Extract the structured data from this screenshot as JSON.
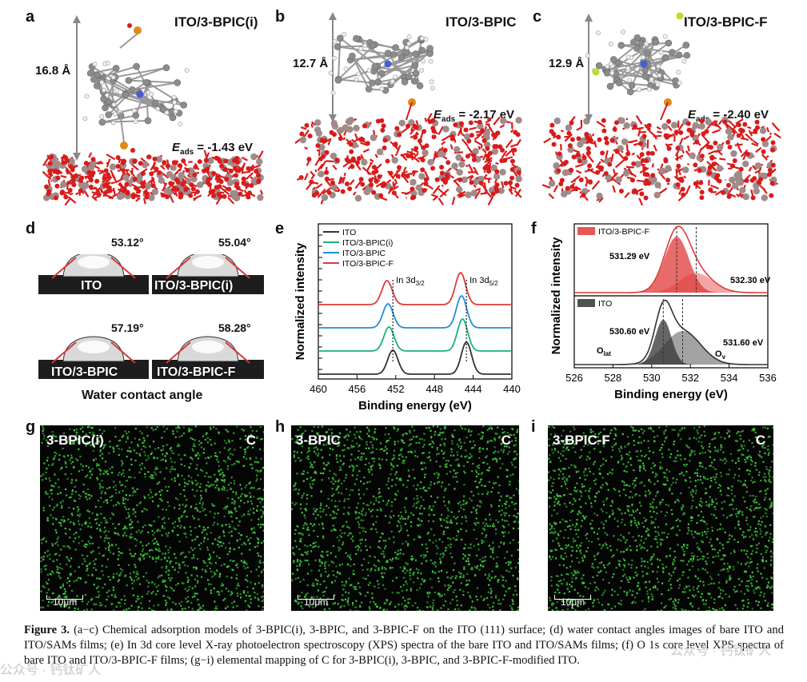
{
  "panels": {
    "a": {
      "letter": "a",
      "title": "ITO/3-BPIC(i)",
      "distance": "16.8 Å",
      "eads_label": "E",
      "eads_sub": "ads",
      "eads_value": " = -1.43 eV"
    },
    "b": {
      "letter": "b",
      "title": "ITO/3-BPIC",
      "distance": "12.7 Å",
      "eads_label": "E",
      "eads_sub": "ads",
      "eads_value": " = -2.17 eV"
    },
    "c": {
      "letter": "c",
      "title": "ITO/3-BPIC-F",
      "distance": "12.9 Å",
      "eads_label": "E",
      "eads_sub": "ads",
      "eads_value": " = -2.40 eV"
    },
    "d": {
      "letter": "d",
      "angles": [
        "53.12°",
        "55.04°",
        "57.19°",
        "58.28°"
      ],
      "labels": [
        "ITO",
        "ITO/3-BPIC(i)",
        "ITO/3-BPIC",
        "ITO/3-BPIC-F"
      ],
      "caption": "Water contact angle"
    },
    "e": {
      "letter": "e"
    },
    "f": {
      "letter": "f"
    },
    "g": {
      "letter": "g",
      "label": "3-BPIC(i)",
      "element": "C",
      "scale": "10μm"
    },
    "h": {
      "letter": "h",
      "label": "3-BPIC",
      "element": "C",
      "scale": "10μm"
    },
    "i": {
      "letter": "i",
      "label": "3-BPIC-F",
      "element": "C",
      "scale": "10μm"
    }
  },
  "chart_data": [
    {
      "type": "line",
      "panel": "e",
      "xlabel": "Binding energy (eV)",
      "ylabel": "Normalized intensity",
      "xlim": [
        460,
        440
      ],
      "xticks": [
        460,
        456,
        452,
        448,
        444,
        440
      ],
      "series": [
        {
          "name": "ITO",
          "color": "#333333",
          "offset": 0,
          "peaks": [
            {
              "x": 452.3,
              "h": 30
            },
            {
              "x": 444.7,
              "h": 40
            }
          ]
        },
        {
          "name": "ITO/3-BPIC(i)",
          "color": "#19b37a",
          "offset": 1,
          "peaks": [
            {
              "x": 452.7,
              "h": 30
            },
            {
              "x": 445.1,
              "h": 40
            }
          ]
        },
        {
          "name": "ITO/3-BPIC",
          "color": "#1e8fd8",
          "offset": 2,
          "peaks": [
            {
              "x": 452.8,
              "h": 30
            },
            {
              "x": 445.2,
              "h": 40
            }
          ]
        },
        {
          "name": "ITO/3-BPIC-F",
          "color": "#e03a3a",
          "offset": 3,
          "peaks": [
            {
              "x": 452.9,
              "h": 30
            },
            {
              "x": 445.3,
              "h": 40
            }
          ]
        }
      ],
      "annotations": [
        {
          "text": "In 3d",
          "sub": "3/2",
          "x": 452.3
        },
        {
          "text": "In 3d",
          "sub": "5/2",
          "x": 444.7
        }
      ]
    },
    {
      "type": "line",
      "panel": "f",
      "xlabel": "Binding energy (eV)",
      "ylabel": "Normalized intensity",
      "xlim": [
        526,
        536
      ],
      "xticks": [
        526,
        528,
        530,
        532,
        534,
        536
      ],
      "series": [
        {
          "name": "ITO/3-BPIC-F",
          "color": "#e03a3a",
          "components": [
            {
              "x": 531.29,
              "h": 1.0,
              "w": 0.9
            },
            {
              "x": 532.3,
              "h": 0.35,
              "w": 1.2
            }
          ]
        },
        {
          "name": "ITO",
          "color": "#333333",
          "components": [
            {
              "x": 530.6,
              "h": 0.8,
              "w": 0.6
            },
            {
              "x": 531.6,
              "h": 0.6,
              "w": 1.3
            }
          ]
        }
      ],
      "annotations": [
        {
          "text": "531.29 eV"
        },
        {
          "text": "532.30 eV"
        },
        {
          "text": "530.60 eV"
        },
        {
          "text": "531.60 eV"
        },
        {
          "text": "O",
          "sub": "lat"
        },
        {
          "text": "O",
          "sub": "v"
        }
      ]
    }
  ],
  "caption": {
    "bold": "Figure 3.",
    "text": " (a−c) Chemical adsorption models of 3-BPIC(i), 3-BPIC, and 3-BPIC-F on the ITO (111) surface; (d) water contact angles images of bare ITO and ITO/SAMs films; (e) In 3d core level X-ray photoelectron spectroscopy (XPS) spectra of the bare ITO and ITO/SAMs films; (f) O 1s core level XPS spectra of bare ITO and ITO/3-BPIC-F films; (g−i) elemental mapping of C for 3-BPIC(i), 3-BPIC, and 3-BPIC-F-modified ITO."
  },
  "watermark": {
    "left": "公众号 · 钙钛矿人",
    "right": "公众号 · 钙钛矿人"
  },
  "colors": {
    "oxygen": "#d81b1b",
    "metal": "#a08a8a",
    "carbon": "#8c8c8c",
    "nitrogen": "#4b5bd6",
    "phosphorus": "#e08a1a",
    "fluorine": "#b6e02a",
    "map_green": "#3ed13e"
  }
}
